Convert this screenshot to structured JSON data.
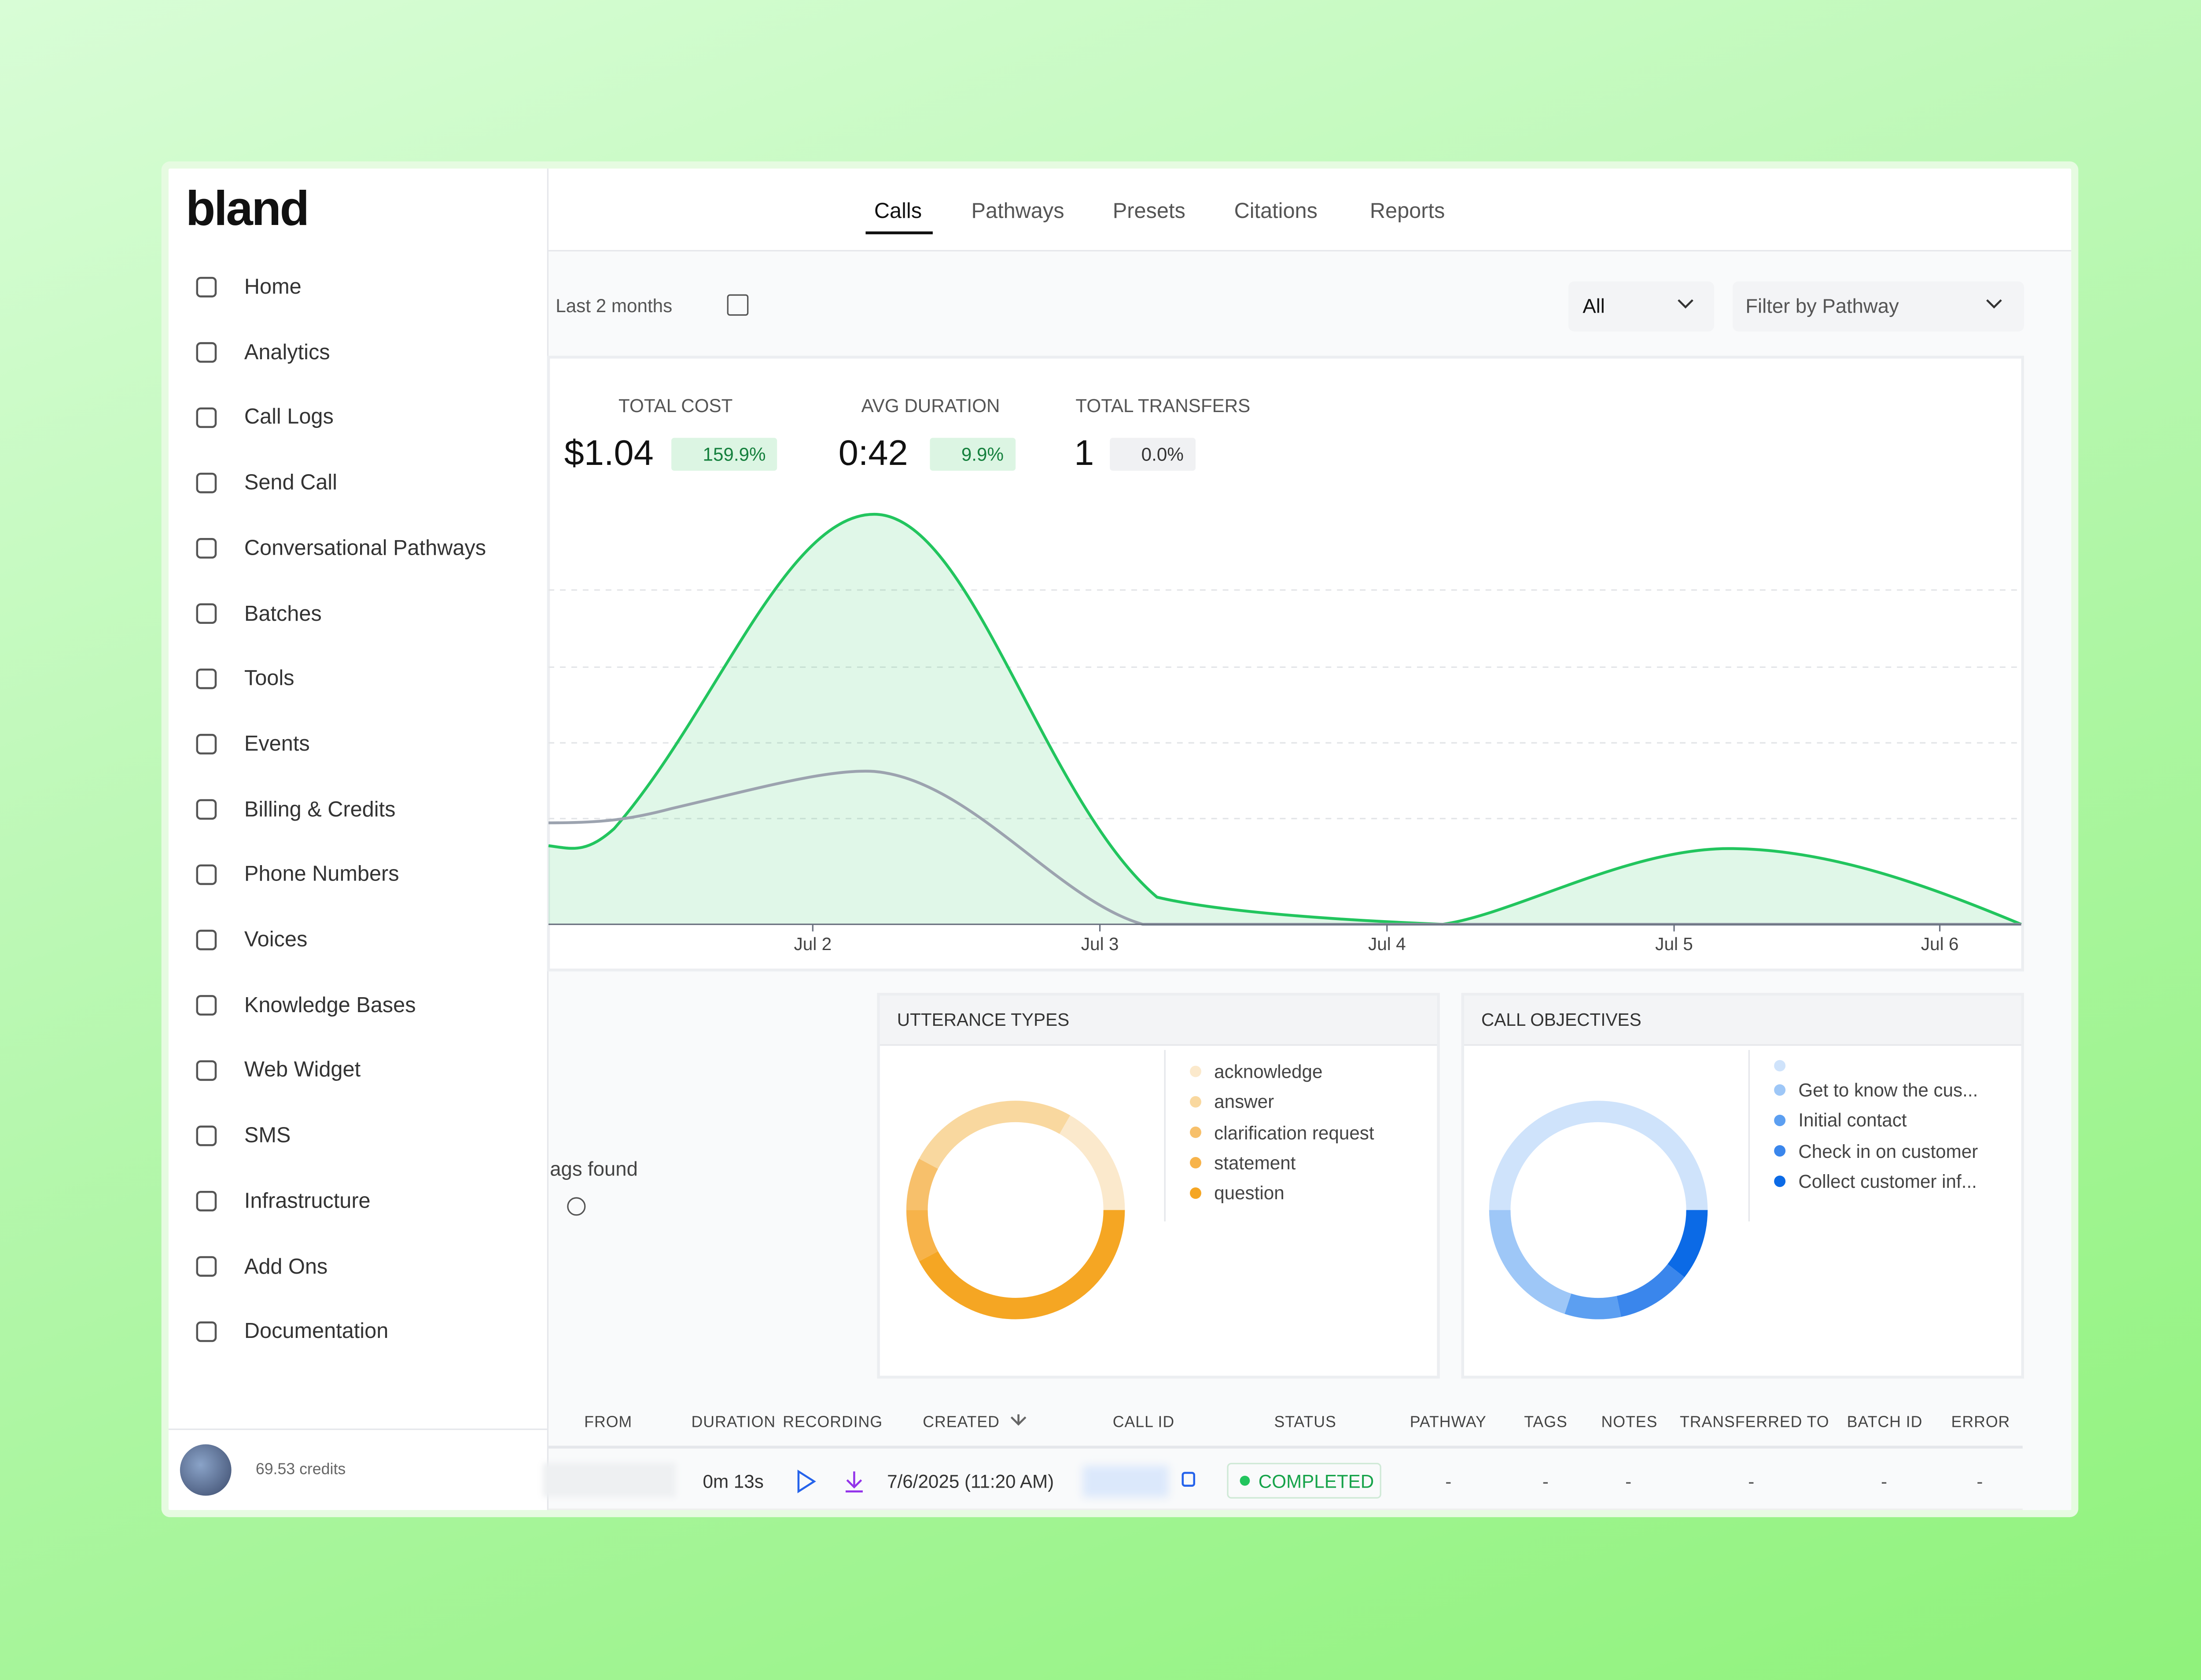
{
  "logo": "bland",
  "nav": [
    "Home",
    "Analytics",
    "Call Logs",
    "Send Call",
    "Conversational Pathways",
    "Batches",
    "Tools",
    "Events",
    "Billing & Credits",
    "Phone Numbers",
    "Voices",
    "Knowledge Bases",
    "Web Widget",
    "SMS",
    "Infrastructure",
    "Add Ons",
    "Documentation"
  ],
  "credits": "69.53 credits",
  "tabs": [
    "Calls",
    "Pathways",
    "Presets",
    "Citations",
    "Reports"
  ],
  "filters": {
    "range": "Last 2 months",
    "status": "All",
    "pathway": "Filter by Pathway"
  },
  "stats": [
    {
      "label": "TOTAL COST",
      "value": "$1.04",
      "change": "159.9%"
    },
    {
      "label": "AVG DURATION",
      "value": "0:42",
      "change": "9.9%"
    },
    {
      "label": "TOTAL TRANSFERS",
      "value": "1",
      "change": "0.0%"
    }
  ],
  "chart": {
    "x_labels": [
      "Jul 2",
      "Jul 3",
      "Jul 4",
      "Jul 5",
      "Jul 6"
    ]
  },
  "tags_empty": "ags found",
  "utterance_types": {
    "title": "UTTERANCE TYPES",
    "legend": [
      "acknowledge",
      "answer",
      "clarification request",
      "statement",
      "question"
    ]
  },
  "call_objectives": {
    "title": "CALL OBJECTIVES",
    "legend": [
      "Get to know the cus...",
      "Initial contact",
      "Check in on customer",
      "Collect customer inf..."
    ]
  },
  "table": {
    "columns": [
      "FROM",
      "DURATION",
      "RECORDING",
      "CREATED",
      "CALL ID",
      "STATUS",
      "PATHWAY",
      "TAGS",
      "NOTES",
      "TRANSFERRED TO",
      "BATCH ID",
      "ERROR"
    ],
    "rows": [
      {
        "duration": "0m 13s",
        "created": "7/6/2025 (11:20 AM)",
        "status": "COMPLETED",
        "pathway": "-",
        "tags": "-",
        "notes": "-",
        "transferred_to": "-",
        "batch_id": "-",
        "error": "-"
      }
    ]
  }
}
